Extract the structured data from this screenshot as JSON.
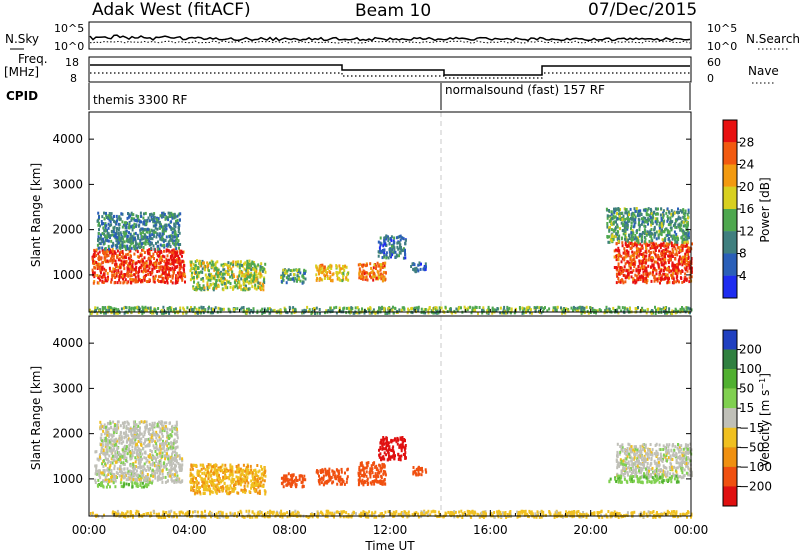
{
  "header": {
    "left_title": "Adak West (fitACF)",
    "center_title": "Beam 10",
    "date": "07/Dec/2015"
  },
  "top_panels": {
    "nsky_label": "N.Sky",
    "nsearch_label": "N.Search",
    "count_ticks": [
      "10^5",
      "10^0"
    ],
    "freq_label": "Freq.",
    "freq_unit": "[MHz]",
    "freq_ticks": [
      "18",
      "8"
    ],
    "nave_label": "Nave",
    "nave_ticks": [
      "60",
      "0"
    ],
    "cpid_label": "CPID",
    "cpid_segments": [
      {
        "label": "themis 3300 RF",
        "start_hour": 0
      },
      {
        "label": "normalsound (fast) 157 RF",
        "start_hour": 14
      }
    ]
  },
  "chart_data": [
    {
      "type": "heatmap",
      "name": "power",
      "xlabel": "",
      "ylabel": "Slant Range [km]",
      "xlim": [
        0,
        24
      ],
      "ylim": [
        180,
        4600
      ],
      "y_ticks": [
        "4000",
        "3000",
        "2000",
        "1000"
      ],
      "colorbar": {
        "label": "Power [dB]",
        "ticks": [
          "28",
          "24",
          "20",
          "16",
          "12",
          "8",
          "4"
        ],
        "levels": [
          {
            "min": 0,
            "max": 4,
            "color": "#1e2cf0"
          },
          {
            "min": 4,
            "max": 8,
            "color": "#2a5fb8"
          },
          {
            "min": 8,
            "max": 12,
            "color": "#3f7f7f"
          },
          {
            "min": 12,
            "max": 16,
            "color": "#4fa84f"
          },
          {
            "min": 16,
            "max": 20,
            "color": "#d8d020"
          },
          {
            "min": 20,
            "max": 24,
            "color": "#f39a10"
          },
          {
            "min": 24,
            "max": 28,
            "color": "#f25a10"
          },
          {
            "min": 28,
            "max": 32,
            "color": "#e81010"
          }
        ]
      },
      "echo_regions": [
        {
          "x": [
            0.1,
            3.8
          ],
          "y": [
            850,
            1600
          ],
          "value": 28
        },
        {
          "x": [
            0.3,
            3.6
          ],
          "y": [
            1600,
            2400
          ],
          "value": 10
        },
        {
          "x": [
            4.0,
            7.0
          ],
          "y": [
            700,
            1350
          ],
          "value": 16
        },
        {
          "x": [
            7.6,
            8.6
          ],
          "y": [
            850,
            1150
          ],
          "value": 12
        },
        {
          "x": [
            9.0,
            10.3
          ],
          "y": [
            900,
            1250
          ],
          "value": 20
        },
        {
          "x": [
            10.7,
            11.8
          ],
          "y": [
            900,
            1300
          ],
          "value": 24
        },
        {
          "x": [
            11.5,
            12.6
          ],
          "y": [
            1400,
            1900
          ],
          "value": 8
        },
        {
          "x": [
            12.8,
            13.4
          ],
          "y": [
            1100,
            1300
          ],
          "value": 6
        },
        {
          "x": [
            20.9,
            24.0
          ],
          "y": [
            850,
            1750
          ],
          "value": 28
        },
        {
          "x": [
            20.6,
            23.9
          ],
          "y": [
            1750,
            2500
          ],
          "value": 12
        },
        {
          "x": [
            0.0,
            24.0
          ],
          "y": [
            180,
            320
          ],
          "value": 14
        }
      ]
    },
    {
      "type": "heatmap",
      "name": "velocity",
      "xlabel": "Time UT",
      "ylabel": "Slant Range [km]",
      "xlim": [
        0,
        24
      ],
      "ylim": [
        180,
        4600
      ],
      "x_ticks": [
        "00:00",
        "04:00",
        "08:00",
        "12:00",
        "16:00",
        "20:00",
        "00:00"
      ],
      "y_ticks": [
        "4000",
        "3000",
        "2000",
        "1000"
      ],
      "colorbar": {
        "label": "Velocity [m s^-1]",
        "ticks": [
          "200",
          "100",
          "50",
          "15",
          "−15",
          "−50",
          "−100",
          "−200"
        ],
        "levels": [
          {
            "min": 200,
            "max": 300,
            "color": "#2040c0"
          },
          {
            "min": 100,
            "max": 200,
            "color": "#308040"
          },
          {
            "min": 50,
            "max": 100,
            "color": "#50b030"
          },
          {
            "min": 15,
            "max": 50,
            "color": "#80d050"
          },
          {
            "min": -15,
            "max": 15,
            "color": "#c0c0b8"
          },
          {
            "min": -50,
            "max": -15,
            "color": "#f0c020"
          },
          {
            "min": -100,
            "max": -50,
            "color": "#f09010"
          },
          {
            "min": -200,
            "max": -100,
            "color": "#f05010"
          },
          {
            "min": -300,
            "max": -200,
            "color": "#e01010"
          }
        ]
      },
      "echo_regions": [
        {
          "x": [
            0.2,
            3.7
          ],
          "y": [
            950,
            1650
          ],
          "value": 0
        },
        {
          "x": [
            0.4,
            3.5
          ],
          "y": [
            1650,
            2300
          ],
          "value": 0
        },
        {
          "x": [
            0.3,
            2.5
          ],
          "y": [
            850,
            950
          ],
          "value": 40
        },
        {
          "x": [
            4.0,
            7.0
          ],
          "y": [
            700,
            1350
          ],
          "value": -45
        },
        {
          "x": [
            7.6,
            8.6
          ],
          "y": [
            850,
            1150
          ],
          "value": -150
        },
        {
          "x": [
            9.0,
            10.3
          ],
          "y": [
            900,
            1250
          ],
          "value": -150
        },
        {
          "x": [
            10.7,
            11.8
          ],
          "y": [
            900,
            1400
          ],
          "value": -150
        },
        {
          "x": [
            11.5,
            12.6
          ],
          "y": [
            1450,
            1950
          ],
          "value": -220
        },
        {
          "x": [
            12.8,
            13.4
          ],
          "y": [
            1100,
            1300
          ],
          "value": -120
        },
        {
          "x": [
            21.0,
            24.0
          ],
          "y": [
            1050,
            1800
          ],
          "value": 0
        },
        {
          "x": [
            20.7,
            23.5
          ],
          "y": [
            950,
            1100
          ],
          "value": 40
        },
        {
          "x": [
            0.0,
            24.0
          ],
          "y": [
            180,
            320
          ],
          "value": -30
        }
      ]
    }
  ]
}
